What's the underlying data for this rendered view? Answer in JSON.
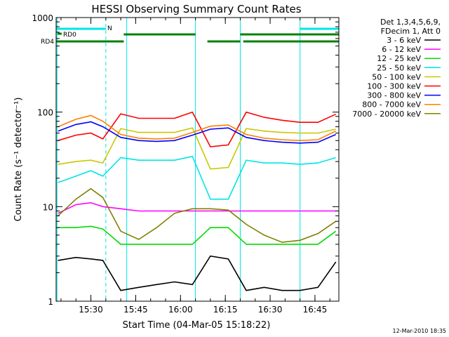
{
  "chart_data": {
    "type": "line",
    "title": "HESSI Observing Summary Count Rates",
    "xlabel": "Start Time (04-Mar-05 15:18:22)",
    "ylabel": "Count Rate (s⁻¹ detector⁻¹)",
    "y_scale": "log",
    "ylim": [
      1,
      1000
    ],
    "xlim": [
      "15:18:22",
      "16:53:00"
    ],
    "x_ticks": [
      "15:30",
      "15:45",
      "16:00",
      "16:15",
      "16:30",
      "16:45"
    ],
    "y_ticks": [
      "1",
      "10",
      "100",
      "1000"
    ],
    "grid": false,
    "legend": {
      "placement": "outside-right",
      "header": [
        "Det 1,3,4,5,6,9,",
        "FDecim 1, Att 0"
      ]
    },
    "x": [
      "15:19",
      "15:25",
      "15:30",
      "15:34",
      "15:40",
      "15:46",
      "15:52",
      "15:58",
      "16:04",
      "16:10",
      "16:16",
      "16:22",
      "16:28",
      "16:34",
      "16:40",
      "16:46",
      "16:52"
    ],
    "series": [
      {
        "name": "3 - 6 keV",
        "color": "#000000",
        "values": [
          2.7,
          2.9,
          2.8,
          2.7,
          1.3,
          1.4,
          1.5,
          1.6,
          1.5,
          3.0,
          2.8,
          1.3,
          1.4,
          1.3,
          1.3,
          1.4,
          2.6
        ]
      },
      {
        "name": "6 - 12 keV",
        "color": "#ff00ff",
        "values": [
          8.5,
          10.5,
          11,
          10,
          9.5,
          9,
          9,
          9,
          9,
          9,
          9,
          9,
          9,
          9,
          9,
          9,
          9
        ]
      },
      {
        "name": "12 - 25 keV",
        "color": "#00dd00",
        "values": [
          6,
          6,
          6.2,
          5.8,
          4,
          4,
          4,
          4,
          4,
          6,
          6,
          4,
          4,
          4,
          4,
          4,
          5.5
        ]
      },
      {
        "name": "25 - 50 keV",
        "color": "#00e5e5",
        "values": [
          18,
          21,
          24,
          21,
          33,
          31,
          31,
          31,
          34,
          12,
          12,
          31,
          29,
          29,
          28,
          29,
          33
        ]
      },
      {
        "name": "50 - 100 keV",
        "color": "#c8c800",
        "values": [
          28,
          30,
          31,
          29,
          67,
          61,
          61,
          61,
          68,
          25,
          26,
          67,
          63,
          61,
          60,
          60,
          66
        ]
      },
      {
        "name": "100 - 300 keV",
        "color": "#ff0000",
        "values": [
          50,
          57,
          60,
          52,
          96,
          86,
          86,
          86,
          100,
          43,
          45,
          100,
          88,
          82,
          78,
          78,
          95
        ]
      },
      {
        "name": "300 - 800 keV",
        "color": "#0000ff",
        "values": [
          63,
          74,
          79,
          70,
          54,
          50,
          49,
          50,
          57,
          66,
          68,
          54,
          50,
          48,
          47,
          48,
          58
        ]
      },
      {
        "name": "800 - 7000 keV",
        "color": "#ff8000",
        "values": [
          70,
          84,
          92,
          80,
          58,
          53,
          52,
          53,
          61,
          71,
          73,
          58,
          53,
          51,
          50,
          51,
          63
        ]
      },
      {
        "name": "7000 - 20000 keV",
        "color": "#808000",
        "values": [
          8,
          12,
          15.5,
          12.5,
          5.5,
          4.5,
          6,
          8.5,
          9.5,
          9.5,
          9.2,
          6.5,
          5,
          4.2,
          4.4,
          5.2,
          7
        ]
      }
    ],
    "flag_rows": [
      {
        "label": "N",
        "color": "#00e5e5",
        "segments": [
          [
            "15:18:22",
            "15:35"
          ],
          [
            "16:40",
            "16:53"
          ]
        ]
      },
      {
        "label": "RD0",
        "color": "#008000",
        "segments": []
      },
      {
        "label": "RD4",
        "color": "#008000",
        "segments": [
          [
            "15:18:22",
            "15:41"
          ],
          [
            "16:09",
            "16:20"
          ],
          [
            "16:21",
            "16:53"
          ]
        ]
      },
      {
        "label": "",
        "color": "#008000",
        "segments": [
          [
            "15:41",
            "16:05"
          ],
          [
            "16:20",
            "16:53"
          ]
        ]
      }
    ],
    "vertical_markers": [
      {
        "time": "15:18:40",
        "style": "solid",
        "color": "#00e5e5"
      },
      {
        "time": "15:35",
        "style": "dashed",
        "color": "#00e5e5"
      },
      {
        "time": "15:42",
        "style": "solid",
        "color": "#00e5e5"
      },
      {
        "time": "16:05",
        "style": "solid",
        "color": "#00e5e5"
      },
      {
        "time": "16:20",
        "style": "solid",
        "color": "#00e5e5"
      },
      {
        "time": "16:40",
        "style": "solid",
        "color": "#00e5e5"
      },
      {
        "time": "16:53",
        "style": "dashed",
        "color": "#00e5e5"
      }
    ],
    "footer": "12-Mar-2010 18:35"
  }
}
